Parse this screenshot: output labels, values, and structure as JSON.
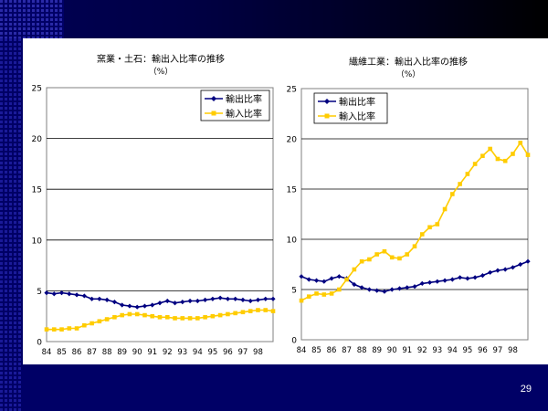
{
  "page_number": "29",
  "colors": {
    "export": "#000080",
    "import": "#ffcc00",
    "plot_bg": "#ffffff",
    "grid": "#000000",
    "slide_bg": "#000066"
  },
  "chart_data": [
    {
      "type": "line",
      "title": "窯業・土石：輸出入比率の推移",
      "subtitle": "（%）",
      "ylim": [
        0,
        25
      ],
      "yticks": [
        "0",
        "5",
        "10",
        "15",
        "20",
        "25"
      ],
      "xticks": [
        "84",
        "85",
        "86",
        "87",
        "88",
        "89",
        "90",
        "91",
        "92",
        "93",
        "94",
        "95",
        "96",
        "97",
        "98"
      ],
      "xrange": [
        84,
        99
      ],
      "grid": "horizontal",
      "legend_position": "top-right",
      "series": [
        {
          "name": "輸出比率",
          "marker": "diamond",
          "color": "#000080",
          "x": [
            84.0,
            84.5,
            85.0,
            85.5,
            86.0,
            86.5,
            87.0,
            87.5,
            88.0,
            88.5,
            89.0,
            89.5,
            90.0,
            90.5,
            91.0,
            91.5,
            92.0,
            92.5,
            93.0,
            93.5,
            94.0,
            94.5,
            95.0,
            95.5,
            96.0,
            96.5,
            97.0,
            97.5,
            98.0,
            98.5,
            99.0
          ],
          "values": [
            4.8,
            4.7,
            4.8,
            4.7,
            4.6,
            4.5,
            4.2,
            4.2,
            4.1,
            3.9,
            3.6,
            3.5,
            3.4,
            3.5,
            3.6,
            3.8,
            4.0,
            3.8,
            3.9,
            4.0,
            4.0,
            4.1,
            4.2,
            4.3,
            4.2,
            4.2,
            4.1,
            4.0,
            4.1,
            4.2,
            4.2
          ]
        },
        {
          "name": "輸入比率",
          "marker": "square",
          "color": "#ffcc00",
          "x": [
            84.0,
            84.5,
            85.0,
            85.5,
            86.0,
            86.5,
            87.0,
            87.5,
            88.0,
            88.5,
            89.0,
            89.5,
            90.0,
            90.5,
            91.0,
            91.5,
            92.0,
            92.5,
            93.0,
            93.5,
            94.0,
            94.5,
            95.0,
            95.5,
            96.0,
            96.5,
            97.0,
            97.5,
            98.0,
            98.5,
            99.0
          ],
          "values": [
            1.2,
            1.2,
            1.2,
            1.3,
            1.3,
            1.6,
            1.8,
            2.0,
            2.2,
            2.4,
            2.6,
            2.7,
            2.7,
            2.6,
            2.5,
            2.4,
            2.4,
            2.3,
            2.3,
            2.3,
            2.3,
            2.4,
            2.5,
            2.6,
            2.7,
            2.8,
            2.9,
            3.0,
            3.1,
            3.1,
            3.0
          ]
        }
      ]
    },
    {
      "type": "line",
      "title": "繊維工業：輸出入比率の推移",
      "subtitle": "（%）",
      "ylim": [
        0,
        25
      ],
      "yticks": [
        "0",
        "5",
        "10",
        "15",
        "20",
        "25"
      ],
      "xticks": [
        "84",
        "85",
        "86",
        "87",
        "88",
        "89",
        "90",
        "91",
        "92",
        "93",
        "94",
        "95",
        "96",
        "97",
        "98"
      ],
      "xrange": [
        84,
        99
      ],
      "grid": "horizontal",
      "legend_position": "top-left",
      "series": [
        {
          "name": "輸出比率",
          "marker": "diamond",
          "color": "#000080",
          "x": [
            84.0,
            84.5,
            85.0,
            85.5,
            86.0,
            86.5,
            87.0,
            87.5,
            88.0,
            88.5,
            89.0,
            89.5,
            90.0,
            90.5,
            91.0,
            91.5,
            92.0,
            92.5,
            93.0,
            93.5,
            94.0,
            94.5,
            95.0,
            95.5,
            96.0,
            96.5,
            97.0,
            97.5,
            98.0,
            98.5,
            99.0
          ],
          "values": [
            6.3,
            6.0,
            5.9,
            5.8,
            6.1,
            6.3,
            6.1,
            5.5,
            5.2,
            5.0,
            4.9,
            4.8,
            5.0,
            5.1,
            5.2,
            5.3,
            5.6,
            5.7,
            5.8,
            5.9,
            6.0,
            6.2,
            6.1,
            6.2,
            6.4,
            6.7,
            6.9,
            7.0,
            7.2,
            7.5,
            7.8
          ]
        },
        {
          "name": "輸入比率",
          "marker": "square",
          "color": "#ffcc00",
          "x": [
            84.0,
            84.5,
            85.0,
            85.5,
            86.0,
            86.5,
            87.0,
            87.5,
            88.0,
            88.5,
            89.0,
            89.5,
            90.0,
            90.5,
            91.0,
            91.5,
            92.0,
            92.5,
            93.0,
            93.5,
            94.0,
            94.5,
            95.0,
            95.5,
            96.0,
            96.5,
            97.0,
            97.5,
            98.0,
            98.5,
            99.0
          ],
          "values": [
            3.9,
            4.3,
            4.6,
            4.5,
            4.6,
            5.0,
            6.0,
            7.0,
            7.8,
            8.0,
            8.5,
            8.8,
            8.2,
            8.1,
            8.5,
            9.3,
            10.5,
            11.2,
            11.5,
            13.0,
            14.5,
            15.5,
            16.5,
            17.5,
            18.3,
            19.0,
            18.0,
            17.8,
            18.5,
            19.6,
            18.4
          ]
        }
      ]
    }
  ]
}
